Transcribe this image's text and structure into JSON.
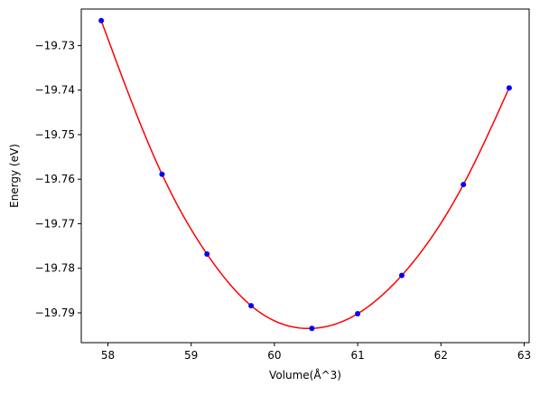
{
  "chart_data": {
    "type": "scatter",
    "title": "",
    "xlabel": "Volume(Å^3)",
    "ylabel": "Energy (eV)",
    "xlim": [
      57.68,
      63.06
    ],
    "ylim": [
      -19.7967,
      -19.7218
    ],
    "xticks": [
      58,
      59,
      60,
      61,
      62,
      63
    ],
    "xtick_labels": [
      "58",
      "59",
      "60",
      "61",
      "62",
      "63"
    ],
    "yticks": [
      -19.73,
      -19.74,
      -19.75,
      -19.76,
      -19.77,
      -19.78,
      -19.79
    ],
    "ytick_labels": [
      "−19.73",
      "−19.74",
      "−19.75",
      "−19.76",
      "−19.77",
      "−19.78",
      "−19.79"
    ],
    "grid": false,
    "legend": false,
    "series": [
      {
        "kind": "points",
        "color": "#0000ff",
        "x": [
          57.92,
          58.65,
          59.19,
          59.72,
          60.45,
          61.0,
          61.53,
          62.27,
          62.82
        ],
        "y": [
          -19.7244,
          -19.7589,
          -19.7768,
          -19.7884,
          -19.7935,
          -19.7902,
          -19.7816,
          -19.7612,
          -19.7395
        ]
      },
      {
        "kind": "fit-curve",
        "color": "#ff0000",
        "x": [
          57.92,
          58.65,
          59.19,
          59.72,
          60.45,
          61.0,
          61.53,
          62.27,
          62.82
        ],
        "y": [
          -19.7244,
          -19.7589,
          -19.7768,
          -19.7884,
          -19.7935,
          -19.7902,
          -19.7816,
          -19.7612,
          -19.7395
        ]
      }
    ]
  }
}
